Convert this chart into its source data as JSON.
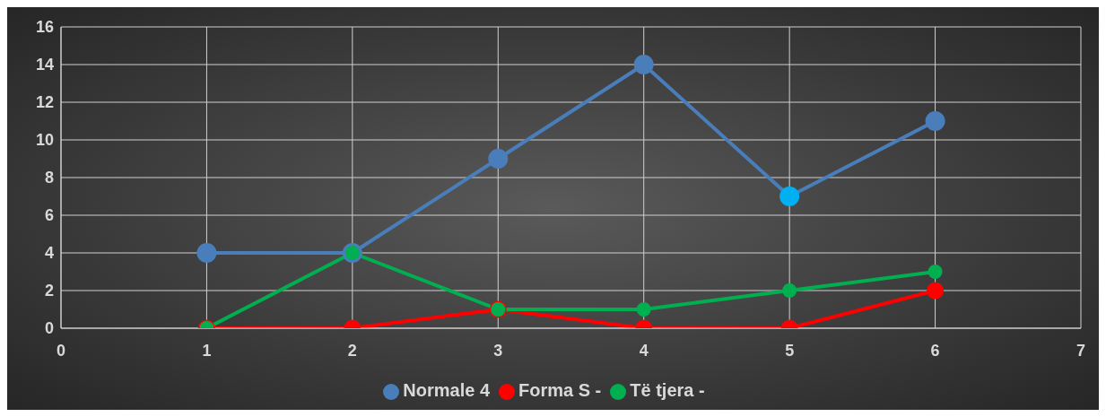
{
  "chart_data": {
    "type": "line",
    "x": [
      1,
      2,
      3,
      4,
      5,
      6
    ],
    "series": [
      {
        "name": "Normale 4",
        "color": "#4a7ebb",
        "colors": [
          "#4a7ebb",
          "#4a7ebb",
          "#4a7ebb",
          "#4a7ebb",
          "#00b0f0",
          "#4a7ebb"
        ],
        "values": [
          4,
          4,
          9,
          14,
          7,
          11
        ]
      },
      {
        "name": "Forma S -",
        "color": "#ff0000",
        "values": [
          0,
          0,
          1,
          0,
          0,
          2
        ]
      },
      {
        "name": "Të tjera -",
        "color": "#00b050",
        "values": [
          0,
          4,
          1,
          1,
          2,
          3
        ]
      }
    ],
    "xlim": [
      0,
      7
    ],
    "xticks": [
      0,
      1,
      2,
      3,
      4,
      5,
      6,
      7
    ],
    "ylim": [
      0,
      16
    ],
    "yticks": [
      0,
      2,
      4,
      6,
      8,
      10,
      12,
      14,
      16
    ],
    "grid": true,
    "legend": "bottom",
    "marker": "circle",
    "line_style": "solid"
  }
}
